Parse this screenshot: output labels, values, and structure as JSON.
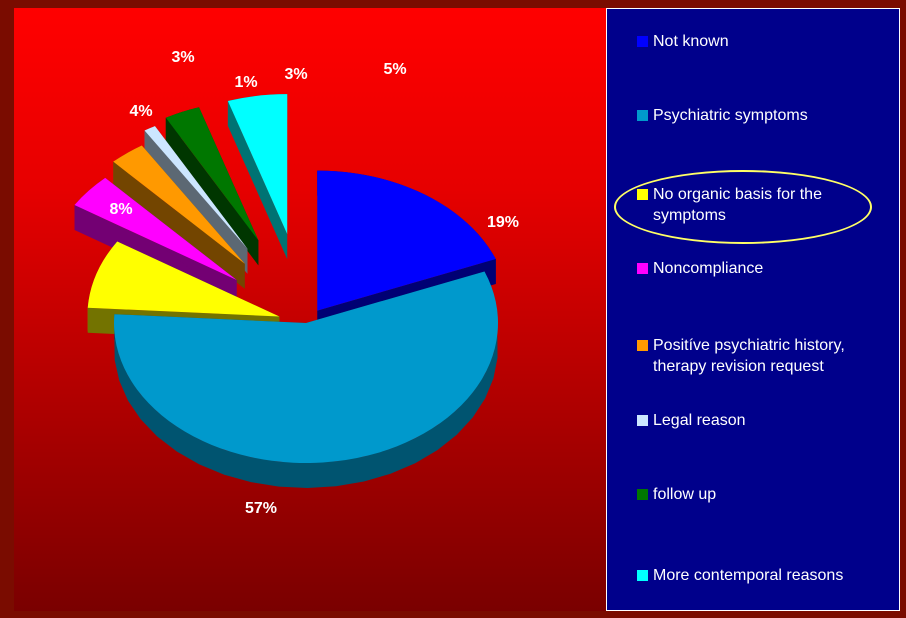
{
  "chart_data": {
    "type": "pie",
    "style": "3d-exploded",
    "categories": [
      "Not known",
      "Psychiatric symptoms",
      "No organic basis for the symptoms",
      "Noncompliance",
      "Positíve psychiatric history, therapy revision request",
      "Legal reason",
      "follow up",
      "More contemporal reasons"
    ],
    "values": [
      19,
      57,
      8,
      4,
      3,
      1,
      3,
      5
    ],
    "labels": [
      "19%",
      "57%",
      "8%",
      "4%",
      "3%",
      "1%",
      "3%",
      "5%"
    ],
    "colors": [
      "#0000ff",
      "#0099cc",
      "#ffff00",
      "#ff00ff",
      "#ff9900",
      "#cce6ff",
      "#007700",
      "#00ffff"
    ],
    "legend_position": "right",
    "highlighted_category": "No organic basis for the symptoms"
  },
  "legend": {
    "items": [
      {
        "label": "Not known",
        "color": "#0000ff"
      },
      {
        "label": "Psychiatric symptoms",
        "color": "#0099cc"
      },
      {
        "label": "No organic basis for the symptoms",
        "color": "#ffff00"
      },
      {
        "label": "Noncompliance",
        "color": "#ff00ff"
      },
      {
        "label": "Positíve psychiatric history, therapy revision request",
        "color": "#ff9900"
      },
      {
        "label": "Legal reason",
        "color": "#cce6ff"
      },
      {
        "label": "follow up",
        "color": "#007700"
      },
      {
        "label": "More contemporal reasons",
        "color": "#00ffff"
      }
    ],
    "highlight_color": "#ffff66"
  },
  "colors": {
    "background": "#7a0c00",
    "plot_gradient_top": "#ff0000",
    "plot_gradient_bottom": "#7a0000",
    "legend_background": "#00008b"
  }
}
